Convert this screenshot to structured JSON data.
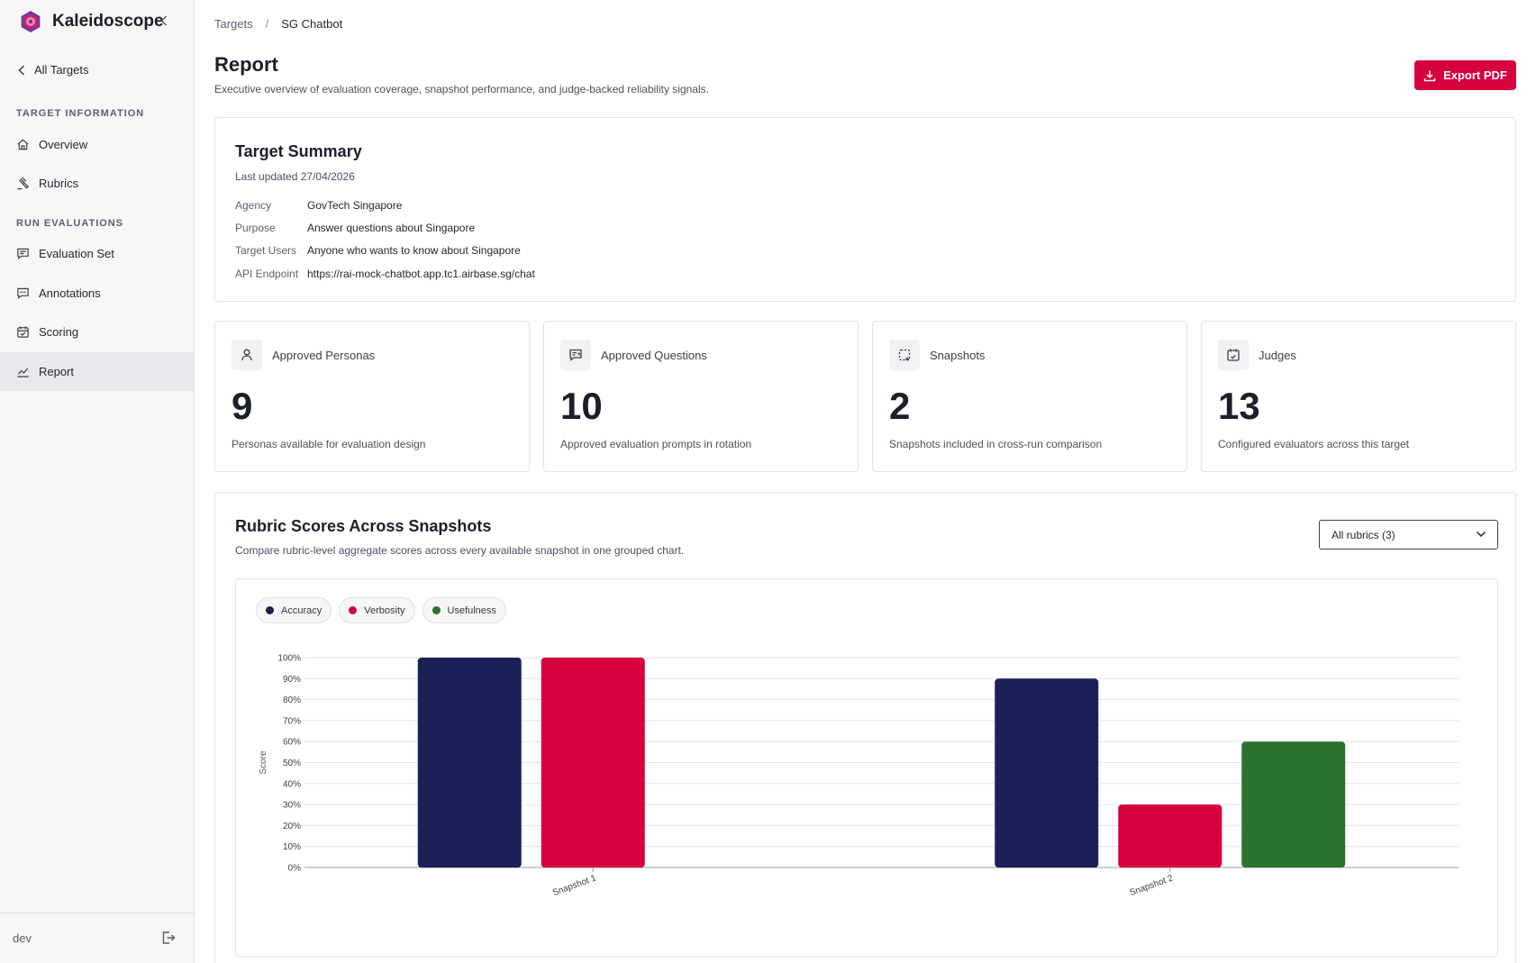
{
  "app": {
    "name": "Kaleidoscope"
  },
  "sidebar": {
    "back_label": "All Targets",
    "sections": [
      {
        "label": "TARGET INFORMATION",
        "items": [
          {
            "label": "Overview",
            "icon": "home-icon"
          },
          {
            "label": "Rubrics",
            "icon": "gavel-icon"
          }
        ]
      },
      {
        "label": "RUN EVALUATIONS",
        "items": [
          {
            "label": "Evaluation Set",
            "icon": "message-list-icon"
          },
          {
            "label": "Annotations",
            "icon": "message-dots-icon"
          },
          {
            "label": "Scoring",
            "icon": "calendar-check-icon"
          },
          {
            "label": "Report",
            "icon": "chart-line-icon",
            "active": true
          }
        ]
      }
    ],
    "user": "dev"
  },
  "breadcrumb": {
    "parent": "Targets",
    "separator": "/",
    "current": "SG Chatbot"
  },
  "header": {
    "title": "Report",
    "subtitle": "Executive overview of evaluation coverage, snapshot performance, and judge-backed reliability signals.",
    "export_label": "Export PDF"
  },
  "summary": {
    "title": "Target Summary",
    "updated": "Last updated 27/04/2026",
    "fields": [
      {
        "key": "Agency",
        "value": "GovTech Singapore"
      },
      {
        "key": "Purpose",
        "value": "Answer questions about Singapore"
      },
      {
        "key": "Target Users",
        "value": "Anyone who wants to know about Singapore"
      },
      {
        "key": "API Endpoint",
        "value": "https://rai-mock-chatbot.app.tc1.airbase.sg/chat"
      }
    ]
  },
  "stats": [
    {
      "title": "Approved Personas",
      "value": "9",
      "desc": "Personas available for evaluation design",
      "icon": "person-icon"
    },
    {
      "title": "Approved Questions",
      "value": "10",
      "desc": "Approved evaluation prompts in rotation",
      "icon": "message-question-icon"
    },
    {
      "title": "Snapshots",
      "value": "2",
      "desc": "Snapshots included in cross-run comparison",
      "icon": "snapshot-icon"
    },
    {
      "title": "Judges",
      "value": "13",
      "desc": "Configured evaluators across this target",
      "icon": "calendar-judge-icon"
    }
  ],
  "chart_section": {
    "title": "Rubric Scores Across Snapshots",
    "subtitle": "Compare rubric-level aggregate scores across every available snapshot in one grouped chart.",
    "select_value": "All rubrics (3)"
  },
  "chart_data": {
    "type": "bar",
    "categories": [
      "Snapshot 1",
      "Snapshot 2"
    ],
    "series": [
      {
        "name": "Accuracy",
        "color": "#1b2157",
        "values": [
          100,
          90
        ]
      },
      {
        "name": "Verbosity",
        "color": "#d7003f",
        "values": [
          100,
          30
        ]
      },
      {
        "name": "Usefulness",
        "color": "#2a7230",
        "values": [
          null,
          60
        ]
      }
    ],
    "ylabel": "Score",
    "ylim": [
      0,
      100
    ],
    "yticks": [
      "0%",
      "10%",
      "20%",
      "30%",
      "40%",
      "50%",
      "60%",
      "70%",
      "80%",
      "90%",
      "100%"
    ],
    "grid": true,
    "legend": "top-left"
  }
}
